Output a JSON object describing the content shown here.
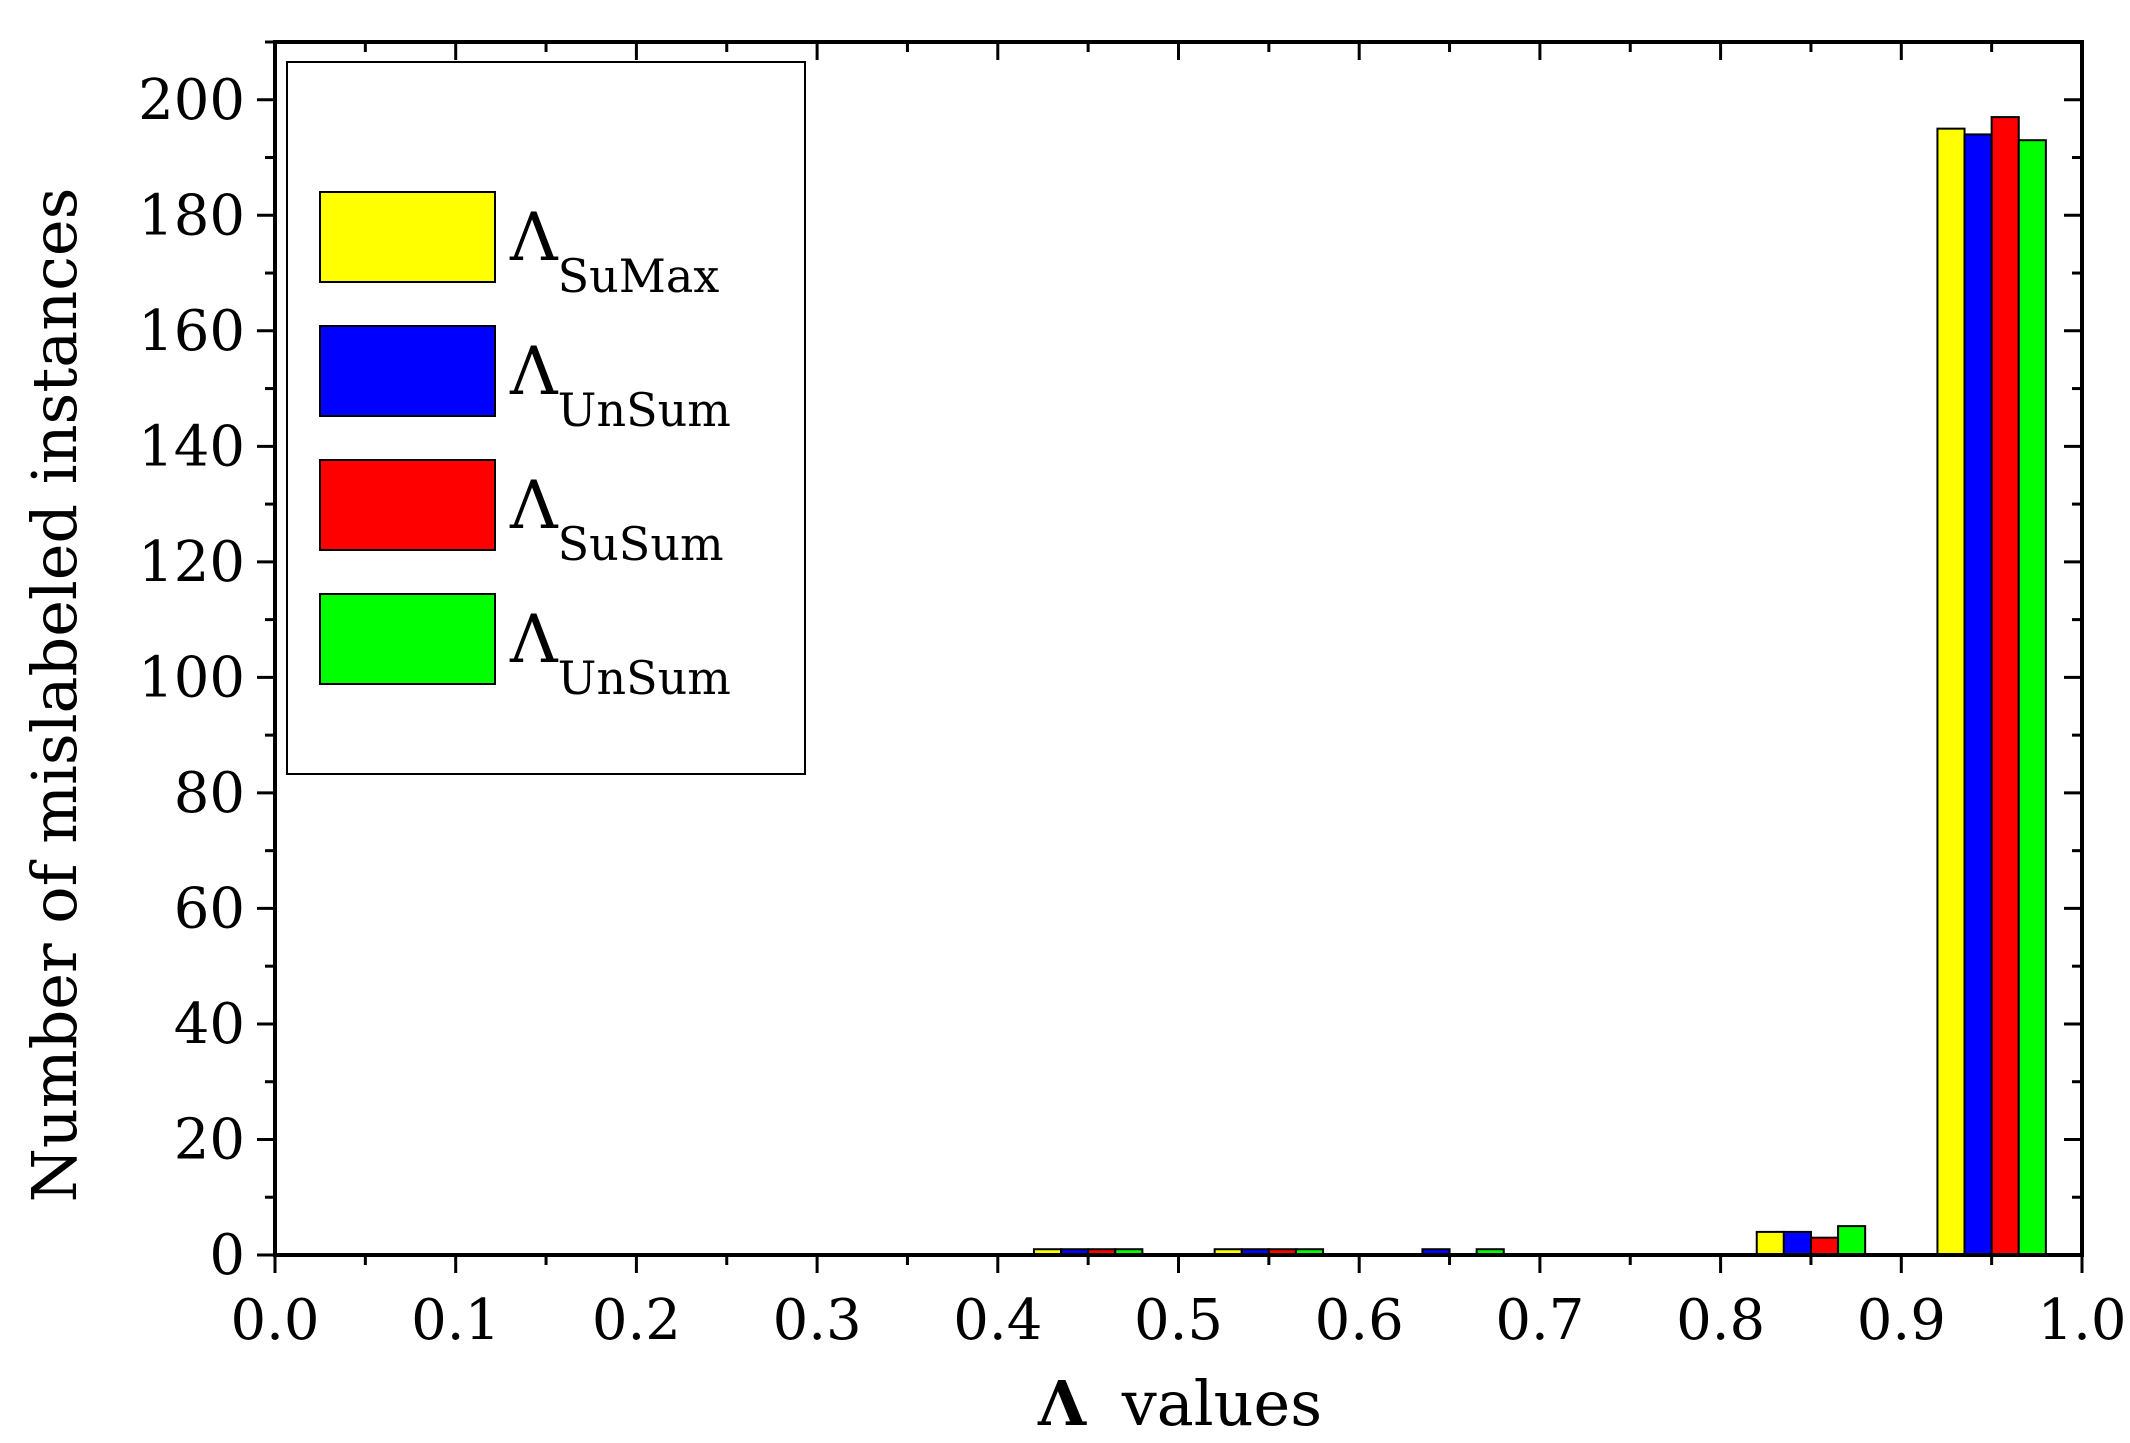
{
  "chart_data": {
    "type": "bar",
    "title": "",
    "xlabel": "values",
    "xlabel_symbol": "Λ",
    "ylabel": "Number of mislabeled instances",
    "xlim": [
      0.0,
      1.0
    ],
    "ylim": [
      0,
      210
    ],
    "x_ticks": [
      "0.0",
      "0.1",
      "0.2",
      "0.3",
      "0.4",
      "0.5",
      "0.6",
      "0.7",
      "0.8",
      "0.9",
      "1.0"
    ],
    "y_ticks": [
      "0",
      "20",
      "40",
      "60",
      "80",
      "100",
      "120",
      "140",
      "160",
      "180",
      "200"
    ],
    "bin_starts": [
      0.4,
      0.5,
      0.6,
      0.8,
      0.9
    ],
    "bin_width": 0.1,
    "legend_position": "top-left",
    "grid": false,
    "series": [
      {
        "name": "Λ SuMax",
        "symbol": "Λ",
        "subscript": "SuMax",
        "color": "#ffff00",
        "values": [
          1,
          1,
          0,
          4,
          195
        ]
      },
      {
        "name": "Λ UnSum",
        "symbol": "Λ",
        "subscript": "UnSum",
        "color": "#0000ff",
        "values": [
          1,
          1,
          1,
          4,
          194
        ]
      },
      {
        "name": "Λ SuSum",
        "symbol": "Λ",
        "subscript": "SuSum",
        "color": "#ff0000",
        "values": [
          1,
          1,
          0,
          3,
          197
        ]
      },
      {
        "name": "Λ UnSum",
        "symbol": "Λ",
        "subscript": "UnSum",
        "color": "#00ff00",
        "values": [
          1,
          1,
          1,
          5,
          193
        ]
      }
    ]
  }
}
